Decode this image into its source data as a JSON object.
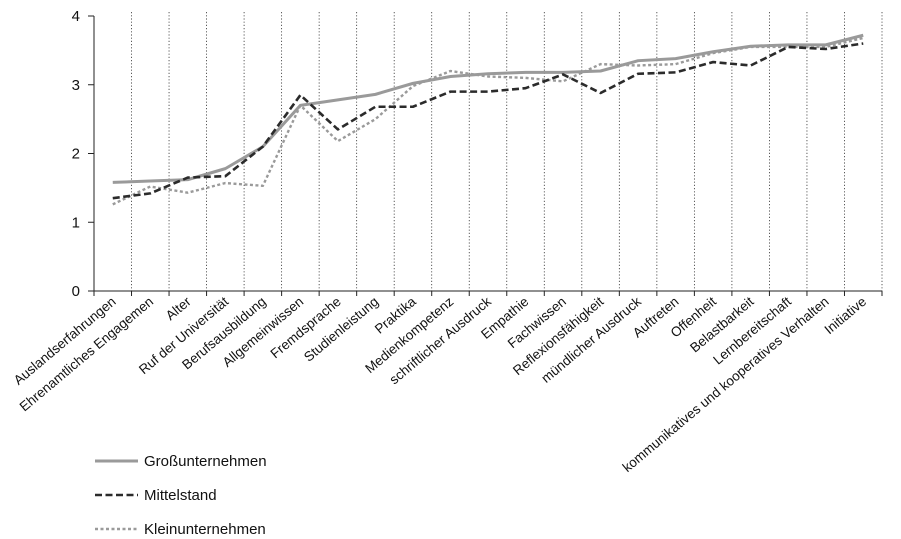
{
  "chart_data": {
    "type": "line",
    "title": "",
    "xlabel": "",
    "ylabel": "",
    "ylim": [
      0,
      4
    ],
    "yticks": [
      0,
      1,
      2,
      3,
      4
    ],
    "grid": "vertical dotted lines at category ticks",
    "legend_position": "bottom-left",
    "categories": [
      "Auslandserfahrungen",
      "Ehrenamtliches Engagemen",
      "Alter",
      "Ruf der Universität",
      "Berufsausbildung",
      "Allgemeinwissen",
      "Fremdsprache",
      "Studienleistung",
      "Praktika",
      "Medienkompetenz",
      "schriftlicher Ausdruck",
      "Empathie",
      "Fachwissen",
      "Reflexionsfähigkeit",
      "mündlicher Ausdruck",
      "Auftreten",
      "Offenheit",
      "Belastbarkeit",
      "Lernbereitschaft",
      "kommunikatives und kooperatives Verhalten",
      "Initiative"
    ],
    "series": [
      {
        "name": "Großunternehmen",
        "color": "#9a9a9a",
        "style": "solid",
        "values": [
          1.58,
          1.6,
          1.62,
          1.78,
          2.1,
          2.7,
          2.78,
          2.86,
          3.02,
          3.12,
          3.16,
          3.18,
          3.18,
          3.2,
          3.35,
          3.38,
          3.48,
          3.56,
          3.58,
          3.58,
          3.72
        ]
      },
      {
        "name": "Mittelstand",
        "color": "#2b2b2b",
        "style": "dashed",
        "values": [
          1.35,
          1.42,
          1.65,
          1.67,
          2.1,
          2.85,
          2.35,
          2.68,
          2.68,
          2.9,
          2.9,
          2.95,
          3.15,
          2.88,
          3.16,
          3.18,
          3.33,
          3.28,
          3.55,
          3.52,
          3.6
        ]
      },
      {
        "name": "Kleinunternehmen",
        "color": "#9a9a9a",
        "style": "dotted",
        "values": [
          1.26,
          1.52,
          1.43,
          1.57,
          1.53,
          2.7,
          2.18,
          2.5,
          2.98,
          3.2,
          3.12,
          3.1,
          3.05,
          3.3,
          3.28,
          3.3,
          3.46,
          3.55,
          3.55,
          3.55,
          3.68
        ]
      }
    ]
  }
}
